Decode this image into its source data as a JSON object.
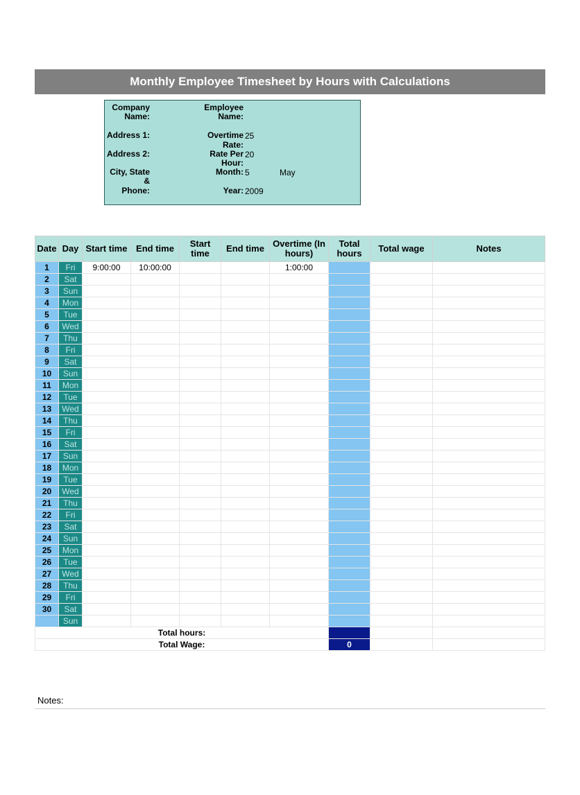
{
  "title": "Monthly Employee Timesheet by Hours with Calculations",
  "info": {
    "companyLabel": "Company Name:",
    "employeeLabel": "Employee Name:",
    "address1Label": "Address 1:",
    "address2Label": "Address 2:",
    "cityLabel": "City, State &",
    "phoneLabel": "Phone:",
    "overtimeRateLabel": "Overtime Rate:",
    "ratePerHourLabel": "Rate Per Hour:",
    "monthLabel": "Month:",
    "yearLabel": "Year:",
    "overtimeRate": "25",
    "ratePerHour": "20",
    "monthNum": "5",
    "monthName": "May",
    "year": "2009"
  },
  "columns": {
    "date": "Date",
    "day": "Day",
    "start1": "Start time",
    "end1": "End time",
    "start2": "Start time",
    "end2": "End time",
    "overtime": "Overtime (In hours)",
    "totalHours": "Total hours",
    "totalWage": "Total wage",
    "notes": "Notes"
  },
  "rows": [
    {
      "date": "1",
      "day": "Fri",
      "start1": "9:00:00",
      "end1": "10:00:00",
      "start2": "",
      "end2": "",
      "ot": "1:00:00",
      "total": "",
      "wage": "",
      "notes": ""
    },
    {
      "date": "2",
      "day": "Sat",
      "start1": "",
      "end1": "",
      "start2": "",
      "end2": "",
      "ot": "",
      "total": "",
      "wage": "",
      "notes": ""
    },
    {
      "date": "3",
      "day": "Sun",
      "start1": "",
      "end1": "",
      "start2": "",
      "end2": "",
      "ot": "",
      "total": "",
      "wage": "",
      "notes": ""
    },
    {
      "date": "4",
      "day": "Mon",
      "start1": "",
      "end1": "",
      "start2": "",
      "end2": "",
      "ot": "",
      "total": "",
      "wage": "",
      "notes": ""
    },
    {
      "date": "5",
      "day": "Tue",
      "start1": "",
      "end1": "",
      "start2": "",
      "end2": "",
      "ot": "",
      "total": "",
      "wage": "",
      "notes": ""
    },
    {
      "date": "6",
      "day": "Wed",
      "start1": "",
      "end1": "",
      "start2": "",
      "end2": "",
      "ot": "",
      "total": "",
      "wage": "",
      "notes": ""
    },
    {
      "date": "7",
      "day": "Thu",
      "start1": "",
      "end1": "",
      "start2": "",
      "end2": "",
      "ot": "",
      "total": "",
      "wage": "",
      "notes": ""
    },
    {
      "date": "8",
      "day": "Fri",
      "start1": "",
      "end1": "",
      "start2": "",
      "end2": "",
      "ot": "",
      "total": "",
      "wage": "",
      "notes": ""
    },
    {
      "date": "9",
      "day": "Sat",
      "start1": "",
      "end1": "",
      "start2": "",
      "end2": "",
      "ot": "",
      "total": "",
      "wage": "",
      "notes": ""
    },
    {
      "date": "10",
      "day": "Sun",
      "start1": "",
      "end1": "",
      "start2": "",
      "end2": "",
      "ot": "",
      "total": "",
      "wage": "",
      "notes": ""
    },
    {
      "date": "11",
      "day": "Mon",
      "start1": "",
      "end1": "",
      "start2": "",
      "end2": "",
      "ot": "",
      "total": "",
      "wage": "",
      "notes": ""
    },
    {
      "date": "12",
      "day": "Tue",
      "start1": "",
      "end1": "",
      "start2": "",
      "end2": "",
      "ot": "",
      "total": "",
      "wage": "",
      "notes": ""
    },
    {
      "date": "13",
      "day": "Wed",
      "start1": "",
      "end1": "",
      "start2": "",
      "end2": "",
      "ot": "",
      "total": "",
      "wage": "",
      "notes": ""
    },
    {
      "date": "14",
      "day": "Thu",
      "start1": "",
      "end1": "",
      "start2": "",
      "end2": "",
      "ot": "",
      "total": "",
      "wage": "",
      "notes": ""
    },
    {
      "date": "15",
      "day": "Fri",
      "start1": "",
      "end1": "",
      "start2": "",
      "end2": "",
      "ot": "",
      "total": "",
      "wage": "",
      "notes": ""
    },
    {
      "date": "16",
      "day": "Sat",
      "start1": "",
      "end1": "",
      "start2": "",
      "end2": "",
      "ot": "",
      "total": "",
      "wage": "",
      "notes": ""
    },
    {
      "date": "17",
      "day": "Sun",
      "start1": "",
      "end1": "",
      "start2": "",
      "end2": "",
      "ot": "",
      "total": "",
      "wage": "",
      "notes": ""
    },
    {
      "date": "18",
      "day": "Mon",
      "start1": "",
      "end1": "",
      "start2": "",
      "end2": "",
      "ot": "",
      "total": "",
      "wage": "",
      "notes": ""
    },
    {
      "date": "19",
      "day": "Tue",
      "start1": "",
      "end1": "",
      "start2": "",
      "end2": "",
      "ot": "",
      "total": "",
      "wage": "",
      "notes": ""
    },
    {
      "date": "20",
      "day": "Wed",
      "start1": "",
      "end1": "",
      "start2": "",
      "end2": "",
      "ot": "",
      "total": "",
      "wage": "",
      "notes": ""
    },
    {
      "date": "21",
      "day": "Thu",
      "start1": "",
      "end1": "",
      "start2": "",
      "end2": "",
      "ot": "",
      "total": "",
      "wage": "",
      "notes": ""
    },
    {
      "date": "22",
      "day": "Fri",
      "start1": "",
      "end1": "",
      "start2": "",
      "end2": "",
      "ot": "",
      "total": "",
      "wage": "",
      "notes": ""
    },
    {
      "date": "23",
      "day": "Sat",
      "start1": "",
      "end1": "",
      "start2": "",
      "end2": "",
      "ot": "",
      "total": "",
      "wage": "",
      "notes": ""
    },
    {
      "date": "24",
      "day": "Sun",
      "start1": "",
      "end1": "",
      "start2": "",
      "end2": "",
      "ot": "",
      "total": "",
      "wage": "",
      "notes": ""
    },
    {
      "date": "25",
      "day": "Mon",
      "start1": "",
      "end1": "",
      "start2": "",
      "end2": "",
      "ot": "",
      "total": "",
      "wage": "",
      "notes": ""
    },
    {
      "date": "26",
      "day": "Tue",
      "start1": "",
      "end1": "",
      "start2": "",
      "end2": "",
      "ot": "",
      "total": "",
      "wage": "",
      "notes": ""
    },
    {
      "date": "27",
      "day": "Wed",
      "start1": "",
      "end1": "",
      "start2": "",
      "end2": "",
      "ot": "",
      "total": "",
      "wage": "",
      "notes": ""
    },
    {
      "date": "28",
      "day": "Thu",
      "start1": "",
      "end1": "",
      "start2": "",
      "end2": "",
      "ot": "",
      "total": "",
      "wage": "",
      "notes": ""
    },
    {
      "date": "29",
      "day": "Fri",
      "start1": "",
      "end1": "",
      "start2": "",
      "end2": "",
      "ot": "",
      "total": "",
      "wage": "",
      "notes": ""
    },
    {
      "date": "30",
      "day": "Sat",
      "start1": "",
      "end1": "",
      "start2": "",
      "end2": "",
      "ot": "",
      "total": "",
      "wage": "",
      "notes": ""
    },
    {
      "date": "",
      "day": "Sun",
      "start1": "",
      "end1": "",
      "start2": "",
      "end2": "",
      "ot": "",
      "total": "",
      "wage": "",
      "notes": ""
    }
  ],
  "summary": {
    "totalHoursLabel": "Total hours:",
    "totalHoursValue": "",
    "totalWageLabel": "Total Wage:",
    "totalWageValue": "0"
  },
  "notesLabel": "Notes:",
  "colors": {
    "titleBg": "#808080",
    "infoBg": "#abded9",
    "headerBg": "#b6e3de",
    "dateBg": "#84c5f1",
    "dayBg": "#1b8a87",
    "totalBg": "#84c5f1",
    "summaryBg": "#0a1a8a"
  }
}
